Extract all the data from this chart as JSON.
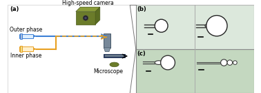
{
  "fig_width": 3.78,
  "fig_height": 1.36,
  "dpi": 100,
  "bg_color": "#ffffff",
  "label_a": "(a)",
  "label_b": "(b)",
  "label_c": "(c)",
  "text_camera": "High-speed camera",
  "text_outer": "Outer phase",
  "text_inner": "Inner phase",
  "text_microscope": "Microscope",
  "camera_color": "#6b7c2a",
  "camera_dark": "#4a5a1a",
  "tube_outer_color": "#3a7fd5",
  "tube_inner_color": "#e8a020",
  "microscope_lens_color": "#6b7c2a",
  "slide_color": "#334466",
  "panel_bg_b": "#dce8dc",
  "panel_bg_c": "#c4d8c0",
  "divider_color": "#aaaaaa",
  "border_color": "#888888",
  "font_size_label": 6,
  "font_size_text": 5.5
}
